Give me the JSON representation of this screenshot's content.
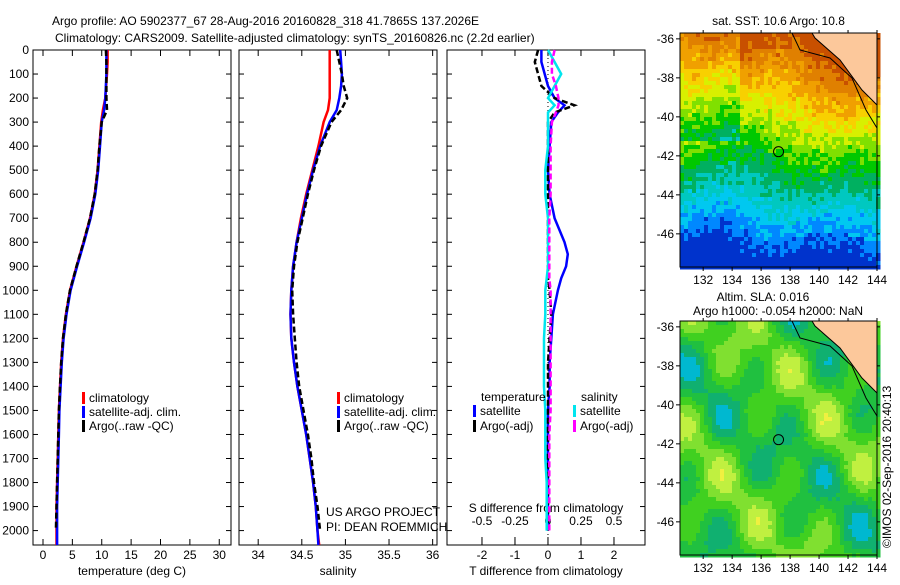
{
  "title_line1": "Argo profile: AO 5902377_67 28-Aug-2016 20160828_318 41.7865S 137.2026E",
  "title_line2": "Climatology: CARS2009. Satellite-adjusted climatology: synTS_20160826.nc (2.2d earlier)",
  "credit": "©IMOS 02-Sep-2016 20:40:13",
  "project_line1": "US ARGO PROJECT",
  "project_line2": "PI: DEAN ROEMMICH",
  "colors": {
    "climatology": "#ff0000",
    "satellite": "#0000ff",
    "argo": "#000000",
    "sal_satellite": "#00e5ee",
    "sal_argo": "#ff00ff",
    "land": "#fcc89b"
  },
  "chart_data": [
    {
      "type": "line",
      "xlabel": "temperature (deg C)",
      "ylabel": "",
      "xlim": [
        -1.7,
        32
      ],
      "ylim": [
        2060,
        0
      ],
      "xticks": [
        "0",
        "5",
        "10",
        "15",
        "20",
        "25",
        "30"
      ],
      "yticks": [
        "0",
        "100",
        "200",
        "300",
        "400",
        "500",
        "600",
        "700",
        "800",
        "900",
        "1000",
        "1100",
        "1200",
        "1300",
        "1400",
        "1500",
        "1600",
        "1700",
        "1800",
        "1900",
        "2000"
      ],
      "legend": [
        "climatology",
        "satellite-adj. clim.",
        "Argo(..raw -QC)"
      ],
      "depth": [
        0,
        50,
        100,
        200,
        250,
        300,
        400,
        500,
        600,
        700,
        800,
        900,
        1000,
        1100,
        1200,
        1300,
        1400,
        1500,
        1600,
        1700,
        1800,
        1900,
        2000,
        2060
      ],
      "series": [
        {
          "name": "climatology",
          "values": [
            11.0,
            11.0,
            10.9,
            10.6,
            10.2,
            9.9,
            9.6,
            9.3,
            8.8,
            8.0,
            6.9,
            5.7,
            4.6,
            3.9,
            3.4,
            3.1,
            2.9,
            2.7,
            2.6,
            2.5,
            2.4,
            2.3,
            2.3,
            2.3
          ]
        },
        {
          "name": "satellite-adj. clim.",
          "values": [
            10.8,
            10.8,
            10.8,
            10.6,
            10.4,
            10.0,
            9.7,
            9.4,
            8.9,
            8.1,
            7.0,
            5.8,
            4.7,
            4.0,
            3.5,
            3.2,
            3.0,
            2.8,
            2.7,
            2.6,
            2.5,
            2.4,
            2.4,
            2.4
          ]
        },
        {
          "name": "Argo(..raw -QC)",
          "values": [
            10.7,
            10.8,
            10.8,
            10.8,
            10.9,
            10.0,
            9.6,
            9.3,
            8.8,
            8.0,
            6.9,
            5.7,
            4.6,
            3.9,
            3.4,
            3.1,
            2.9,
            2.7,
            2.6,
            2.5,
            2.4,
            2.3,
            2.2,
            null
          ]
        }
      ]
    },
    {
      "type": "line",
      "xlabel": "salinity",
      "xlim": [
        33.78,
        36.05
      ],
      "ylim": [
        2060,
        0
      ],
      "xticks": [
        "34",
        "34.5",
        "35",
        "35.5",
        "36"
      ],
      "legend": [
        "climatology",
        "satellite-adj. clim.",
        "Argo(..raw -QC)"
      ],
      "depth": [
        0,
        50,
        100,
        150,
        200,
        250,
        300,
        400,
        500,
        600,
        700,
        800,
        900,
        1000,
        1100,
        1200,
        1300,
        1400,
        1500,
        1600,
        1700,
        1800,
        1900,
        2000,
        2060
      ],
      "series": [
        {
          "name": "climatology",
          "values": [
            34.82,
            34.82,
            34.82,
            34.82,
            34.82,
            34.8,
            34.75,
            34.69,
            34.62,
            34.55,
            34.49,
            34.44,
            34.4,
            34.38,
            34.37,
            34.38,
            34.41,
            34.45,
            34.5,
            34.55,
            34.59,
            34.63,
            34.66,
            34.68,
            34.7
          ]
        },
        {
          "name": "satellite-adj. clim.",
          "values": [
            34.94,
            34.95,
            34.96,
            34.95,
            34.93,
            34.9,
            34.82,
            34.71,
            34.63,
            34.56,
            34.5,
            34.44,
            34.4,
            34.38,
            34.37,
            34.38,
            34.41,
            34.45,
            34.5,
            34.55,
            34.59,
            34.63,
            34.66,
            34.68,
            34.69
          ]
        },
        {
          "name": "Argo(..raw -QC)",
          "values": [
            34.9,
            34.93,
            34.96,
            34.98,
            35.02,
            34.95,
            34.84,
            34.72,
            34.64,
            34.57,
            34.51,
            34.45,
            34.41,
            34.39,
            34.4,
            34.42,
            34.44,
            34.47,
            34.52,
            34.57,
            34.61,
            34.64,
            34.68,
            34.71,
            null
          ]
        }
      ]
    },
    {
      "type": "line",
      "xlabel": "T difference from climatology",
      "x2label": "S difference from climatology",
      "xlim": [
        -3.06,
        2.94
      ],
      "x2lim": [
        -0.765,
        0.735
      ],
      "ylim": [
        2060,
        0
      ],
      "xticks": [
        "-2",
        "-1",
        "0",
        "1",
        "2"
      ],
      "x2ticks": [
        "-0.5",
        "-0.25",
        "0",
        "0.25",
        "0.5"
      ],
      "legend_titles": [
        "temperature",
        "salinity"
      ],
      "legend": [
        "satellite",
        "Argo(-adj)",
        "satellite",
        "Argo(-adj)"
      ],
      "depth": [
        0,
        50,
        100,
        150,
        200,
        230,
        260,
        300,
        400,
        500,
        600,
        700,
        800,
        850,
        900,
        950,
        1000,
        1100,
        1200,
        1300,
        1400,
        1500,
        1600,
        1700,
        1800,
        1900,
        2000
      ],
      "series": [
        {
          "name": "T satellite",
          "axis": "T",
          "values": [
            -0.2,
            -0.2,
            -0.1,
            0.0,
            0.2,
            0.5,
            0.3,
            0.1,
            0.05,
            0.0,
            0.05,
            0.2,
            0.5,
            0.6,
            0.55,
            0.4,
            0.3,
            0.15,
            0.1,
            0.05,
            0.05,
            0.0,
            0.0,
            0.0,
            0.0,
            0.0,
            0.0
          ]
        },
        {
          "name": "T Argo(-adj)",
          "axis": "T",
          "values": [
            -0.3,
            -0.4,
            -0.3,
            -0.2,
            0.2,
            0.8,
            0.2,
            0.0,
            0.0,
            0.0,
            0.0,
            0.0,
            0.0,
            0.0,
            0.0,
            0.0,
            0.05,
            0.1,
            0.05,
            0.0,
            0.0,
            0.0,
            0.0,
            0.0,
            0.0,
            0.0,
            0.0
          ]
        },
        {
          "name": "S satellite",
          "axis": "S",
          "values": [
            0.0,
            0.05,
            0.1,
            0.05,
            0.0,
            0.05,
            0.0,
            0.0,
            0.0,
            -0.02,
            -0.02,
            0.0,
            0.0,
            0.0,
            0.0,
            -0.01,
            -0.02,
            -0.02,
            -0.03,
            -0.03,
            -0.03,
            -0.02,
            -0.02,
            -0.02,
            -0.01,
            -0.01,
            -0.01
          ]
        },
        {
          "name": "S Argo(-adj)",
          "axis": "S",
          "values": [
            0.05,
            0.03,
            0.03,
            0.06,
            0.08,
            0.08,
            0.06,
            0.03,
            0.02,
            0.02,
            0.02,
            0.01,
            0.01,
            0.01,
            0.01,
            0.01,
            0.02,
            0.02,
            0.02,
            0.02,
            0.02,
            0.02,
            0.01,
            0.01,
            0.01,
            0.01,
            0.01
          ]
        }
      ]
    },
    {
      "type": "heatmap",
      "title": "sat. SST: 10.6 Argo: 10.8",
      "xlim": [
        130.4,
        144
      ],
      "ylim": [
        -47.7,
        -35.7
      ],
      "xticks": [
        "132",
        "134",
        "136",
        "138",
        "140",
        "142",
        "144"
      ],
      "yticks": [
        "-36",
        "-38",
        "-40",
        "-42",
        "-44",
        "-46"
      ],
      "argo_position": {
        "lon": 137.2026,
        "lat": -41.7865
      }
    },
    {
      "type": "heatmap",
      "title_line1": "Altim. SLA: 0.016",
      "title_line2": "Argo h1000: -0.054 h2000: NaN",
      "xlim": [
        130.4,
        144
      ],
      "ylim": [
        -47.7,
        -35.7
      ],
      "xticks": [
        "132",
        "134",
        "136",
        "138",
        "140",
        "142",
        "144"
      ],
      "yticks": [
        "-36",
        "-38",
        "-40",
        "-42",
        "-44",
        "-46"
      ],
      "argo_position": {
        "lon": 137.2026,
        "lat": -41.7865
      }
    }
  ]
}
